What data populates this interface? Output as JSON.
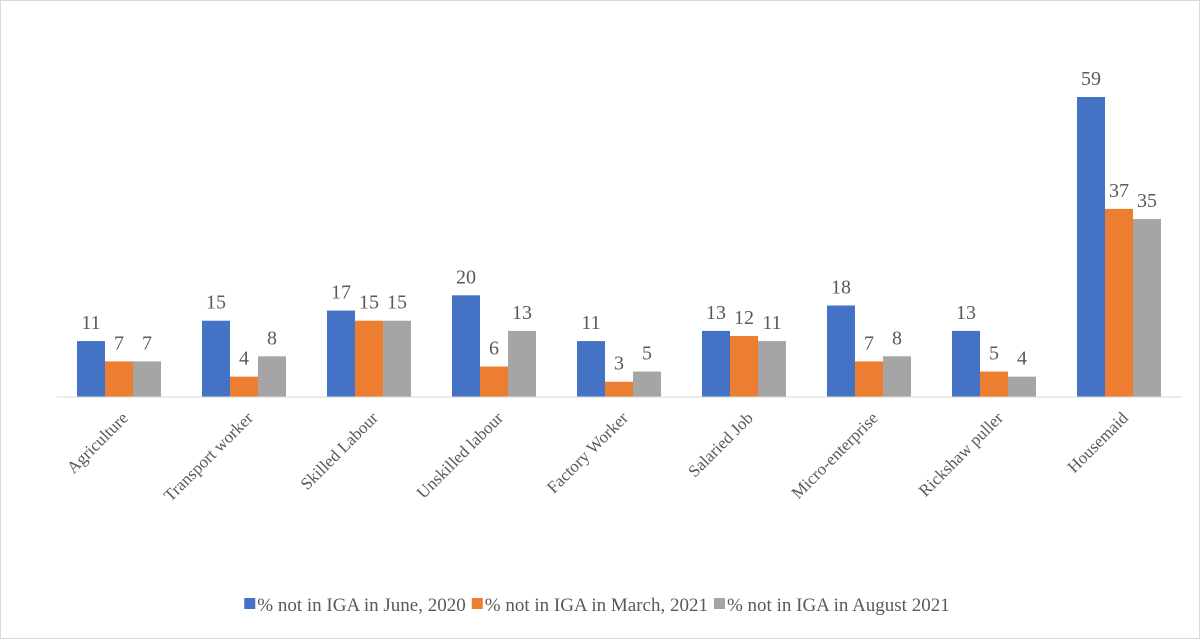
{
  "chart_data": {
    "type": "bar",
    "categories": [
      "Agriculture",
      "Transport worker",
      "Skilled Labour",
      "Unskilled labour",
      "Factory Worker",
      "Salaried Job",
      "Micro-enterprise",
      "Rickshaw puller",
      "Housemaid"
    ],
    "series": [
      {
        "name": "% not in IGA in June, 2020",
        "color": "#4472c4",
        "values": [
          11,
          15,
          17,
          20,
          11,
          13,
          18,
          13,
          59
        ]
      },
      {
        "name": "% not in IGA in March, 2021",
        "color": "#ed7d31",
        "values": [
          7,
          4,
          15,
          6,
          3,
          12,
          7,
          5,
          37
        ]
      },
      {
        "name": "% not in IGA in August 2021",
        "color": "#a5a5a5",
        "values": [
          7,
          8,
          15,
          13,
          5,
          11,
          8,
          4,
          35
        ]
      }
    ],
    "legend": "bottom"
  }
}
